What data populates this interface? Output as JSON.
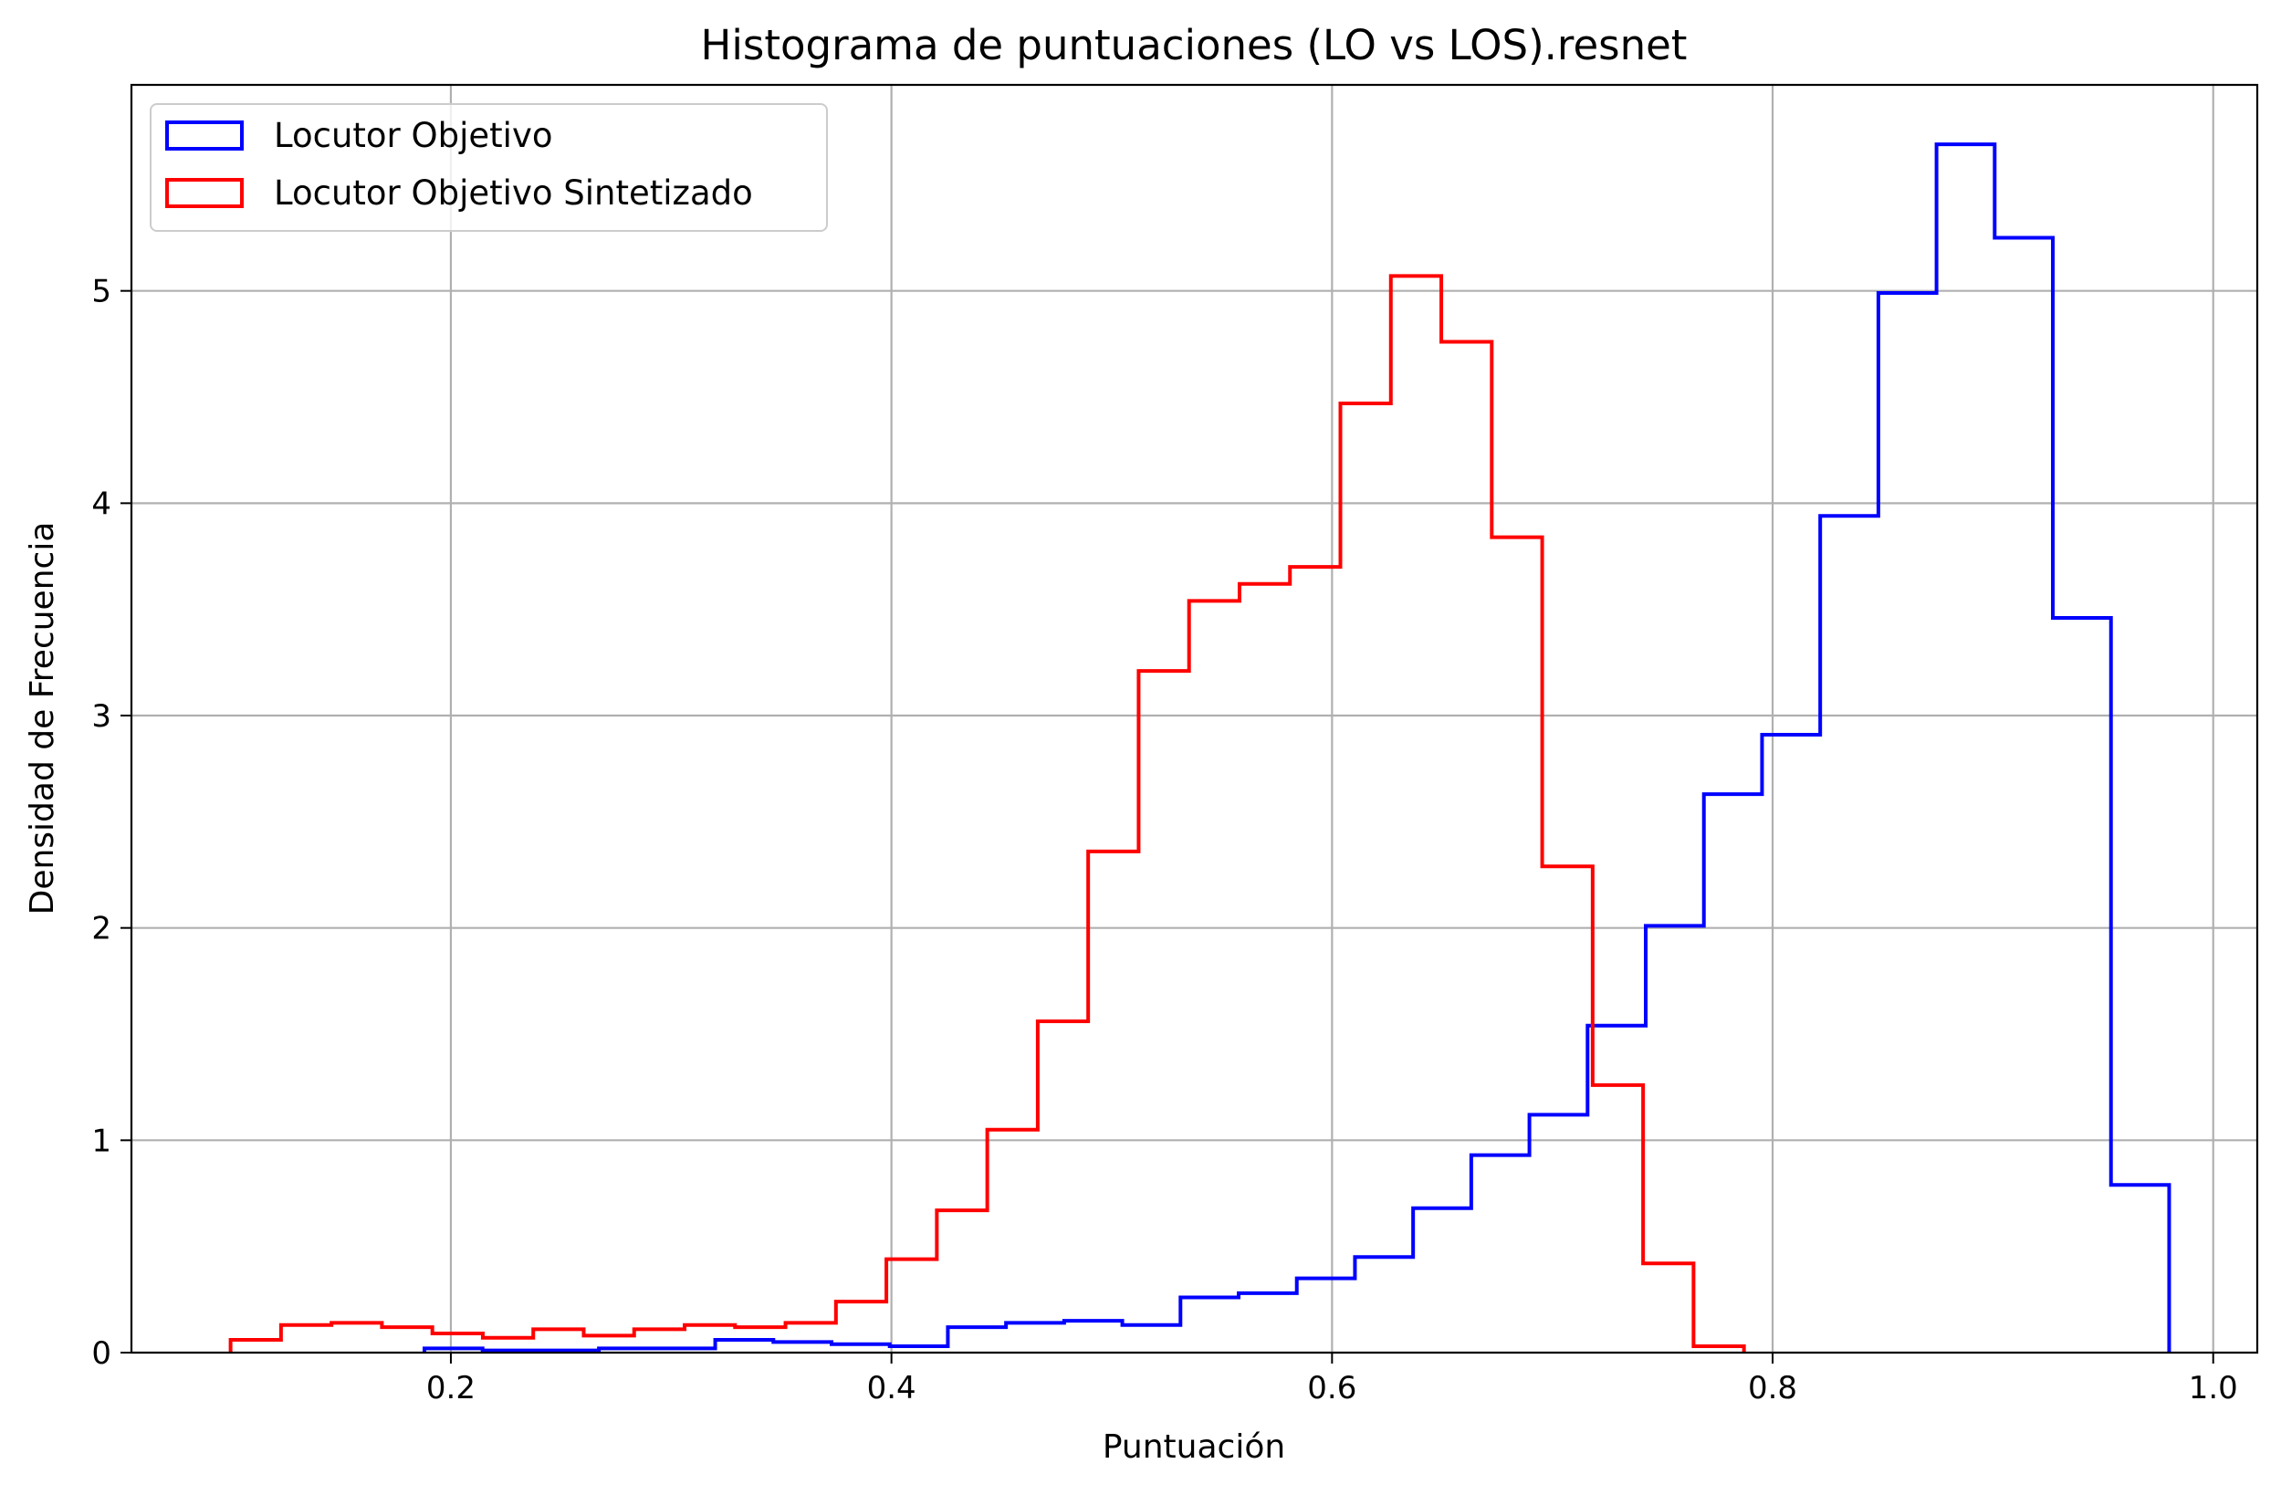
{
  "chart_data": {
    "type": "histogram",
    "title": "Histograma de puntuaciones (LO vs LOS).resnet",
    "xlabel": "Puntuación",
    "ylabel": "Densidad de Frecuencia",
    "xlim": [
      0.055,
      1.02
    ],
    "ylim": [
      0,
      5.97
    ],
    "xticks": [
      0.2,
      0.4,
      0.6,
      0.8,
      1.0
    ],
    "xtick_labels": [
      "0.2",
      "0.4",
      "0.6",
      "0.8",
      "1.0"
    ],
    "yticks": [
      0,
      1,
      2,
      3,
      4,
      5
    ],
    "ytick_labels": [
      "0",
      "1",
      "2",
      "3",
      "4",
      "5"
    ],
    "grid": true,
    "legend_position": "top-left",
    "series": [
      {
        "name": "Locutor Objetivo",
        "color": "#0000ff",
        "bin_start": 0.188,
        "bin_width": 0.0264,
        "values": [
          0.02,
          0.01,
          0.01,
          0.02,
          0.02,
          0.06,
          0.05,
          0.04,
          0.03,
          0.12,
          0.14,
          0.15,
          0.13,
          0.26,
          0.28,
          0.35,
          0.45,
          0.68,
          0.93,
          1.12,
          1.54,
          2.01,
          2.63,
          2.91,
          3.94,
          4.99,
          5.69,
          5.25,
          3.46,
          0.79
        ]
      },
      {
        "name": "Locutor Objetivo Sintetizado",
        "color": "#ff0000",
        "bin_start": 0.1,
        "bin_width": 0.0229,
        "values": [
          0.06,
          0.13,
          0.14,
          0.12,
          0.09,
          0.07,
          0.11,
          0.08,
          0.11,
          0.13,
          0.12,
          0.14,
          0.24,
          0.44,
          0.67,
          1.05,
          1.56,
          2.36,
          3.21,
          3.54,
          3.62,
          3.7,
          4.47,
          5.07,
          4.76,
          3.84,
          2.29,
          1.26,
          0.42,
          0.03
        ]
      }
    ]
  }
}
